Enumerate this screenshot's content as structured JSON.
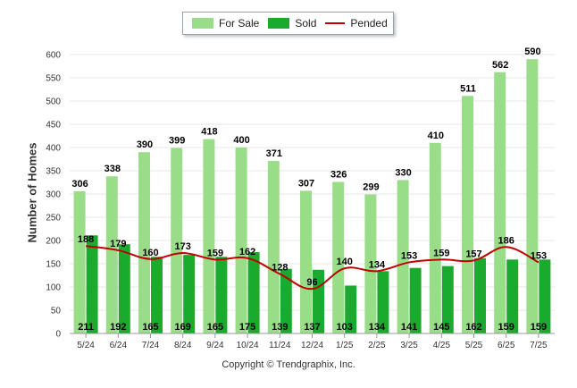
{
  "chart_data": {
    "type": "bar",
    "title": "",
    "xlabel": "",
    "ylabel": "Number of Homes",
    "ylim": [
      0,
      600
    ],
    "yticks": [
      0,
      50,
      100,
      150,
      200,
      250,
      300,
      350,
      400,
      450,
      500,
      550,
      600
    ],
    "categories": [
      "5/24",
      "6/24",
      "7/24",
      "8/24",
      "9/24",
      "10/24",
      "11/24",
      "12/24",
      "1/25",
      "2/25",
      "3/25",
      "4/25",
      "5/25",
      "6/25",
      "7/25"
    ],
    "series": [
      {
        "name": "For Sale",
        "type": "bar",
        "color": "#99dd88",
        "values": [
          306,
          338,
          390,
          399,
          418,
          400,
          371,
          307,
          326,
          299,
          330,
          410,
          511,
          562,
          590
        ]
      },
      {
        "name": "Sold",
        "type": "bar",
        "color": "#1aab2e",
        "values": [
          211,
          192,
          165,
          169,
          165,
          175,
          139,
          137,
          103,
          134,
          141,
          145,
          162,
          159,
          159
        ]
      },
      {
        "name": "Pended",
        "type": "line",
        "color": "#c00000",
        "values": [
          188,
          179,
          160,
          173,
          159,
          162,
          128,
          96,
          140,
          134,
          153,
          159,
          157,
          186,
          153
        ]
      }
    ],
    "grid": true,
    "legend_position": "top-center"
  },
  "footer": {
    "copyright": "Copyright © Trendgraphix, Inc."
  }
}
